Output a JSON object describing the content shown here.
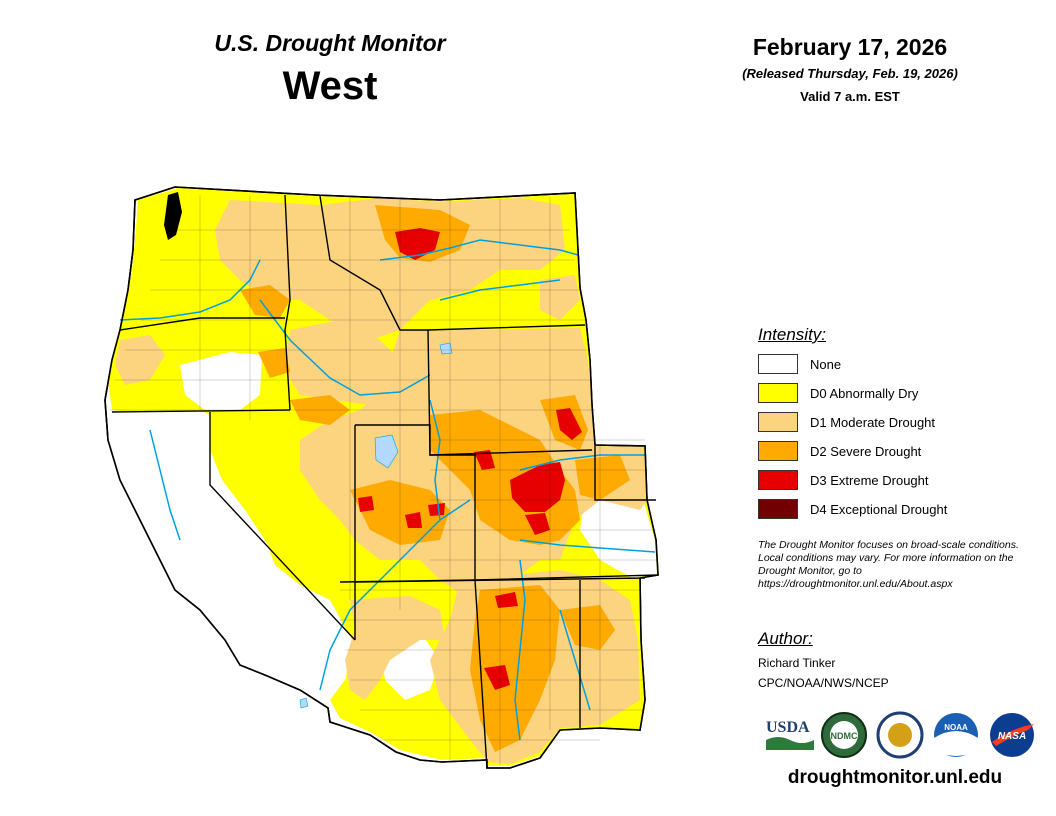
{
  "header": {
    "title": "U.S. Drought Monitor",
    "region": "West",
    "date": "February 17, 2026",
    "released": "(Released Thursday, Feb. 19, 2026)",
    "valid": "Valid 7 a.m. EST"
  },
  "colors": {
    "none": "#ffffff",
    "d0": "#ffff00",
    "d1": "#fcd37f",
    "d2": "#ffaa00",
    "d3": "#e60000",
    "d4": "#730000",
    "water": "#b3d9ff",
    "river": "#00a0e0",
    "border": "#000000"
  },
  "legend": {
    "title": "Intensity:",
    "items": [
      {
        "label": "None",
        "color": "#ffffff"
      },
      {
        "label": "D0 Abnormally Dry",
        "color": "#ffff00"
      },
      {
        "label": "D1 Moderate Drought",
        "color": "#fcd37f"
      },
      {
        "label": "D2 Severe Drought",
        "color": "#ffaa00"
      },
      {
        "label": "D3 Extreme Drought",
        "color": "#e60000"
      },
      {
        "label": "D4 Exceptional Drought",
        "color": "#730000"
      }
    ]
  },
  "note": "The Drought Monitor focuses on broad-scale conditions. Local conditions may vary. For more information on the Drought Monitor, go to https://droughtmonitor.unl.edu/About.aspx",
  "author": {
    "title": "Author:",
    "name": "Richard Tinker",
    "org": "CPC/NOAA/NWS/NCEP"
  },
  "logos": [
    {
      "name": "usda-logo",
      "text": "USDA"
    },
    {
      "name": "ndmc-logo",
      "text": "NDMC"
    },
    {
      "name": "doc-seal-logo",
      "text": ""
    },
    {
      "name": "noaa-logo",
      "text": "NOAA"
    },
    {
      "name": "nasa-logo",
      "text": "NASA"
    }
  ],
  "url": "droughtmonitor.unl.edu"
}
